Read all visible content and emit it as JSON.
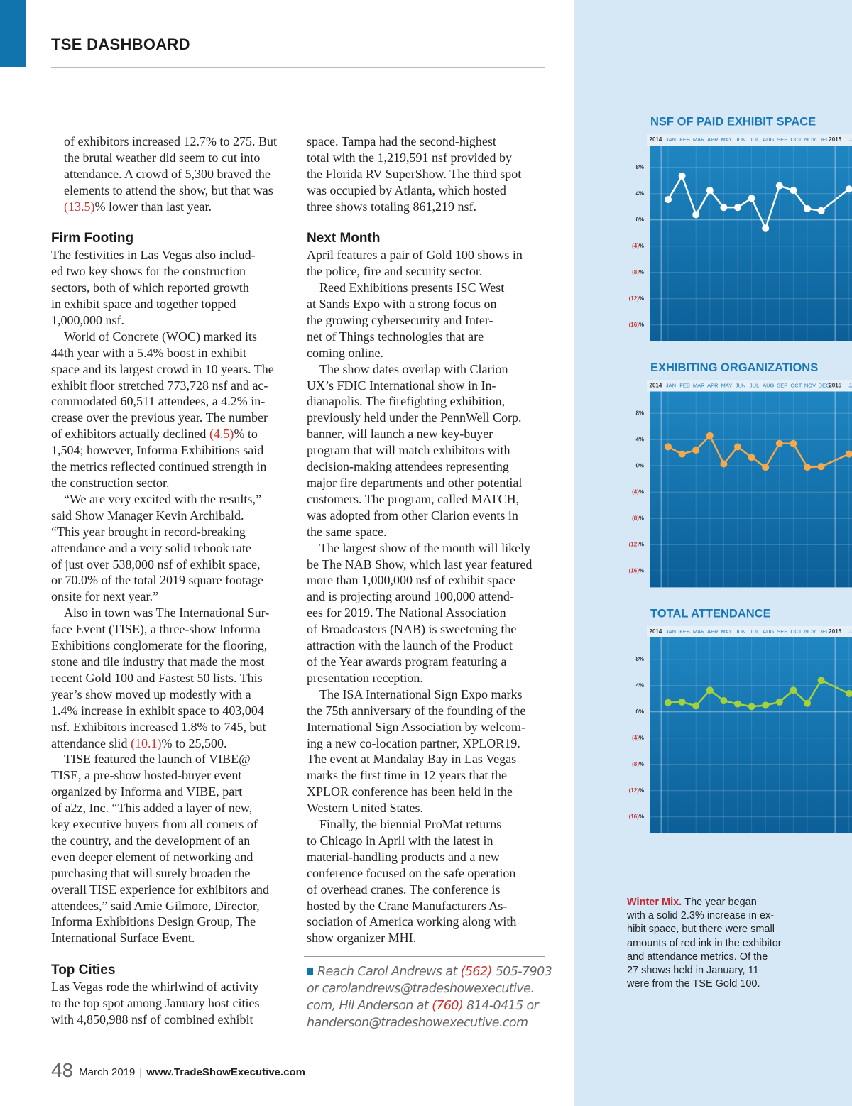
{
  "header": {
    "title": "TSE DASHBOARD"
  },
  "article": {
    "left": [
      {
        "paragraphs": [
          [
            "of exhibitors increased 12.7% to 275. But",
            "the brutal weather did seem to cut into",
            "attendance. A crowd of 5,300 braved the",
            "elements to attend the show, but that was",
            "(13.5)% lower than last year."
          ]
        ]
      },
      {
        "heading": "Firm Footing",
        "paragraphs": [
          [
            "The festivities in Las Vegas also includ-",
            "ed two key shows for the construction",
            "sectors, both of which reported growth",
            "in exhibit space and together topped",
            "1,000,000 nsf."
          ],
          [
            "World of Concrete (WOC) marked its",
            "44th year with a 5.4% boost in exhibit",
            "space and its largest crowd in 10 years. The",
            "exhibit floor stretched 773,728 nsf and ac-",
            "commodated 60,511 attendees, a 4.2% in-",
            "crease over the previous year. The number",
            "of exhibitors actually declined (4.5)% to",
            "1,504; however, Informa Exhibitions said",
            "the metrics reflected continued strength in",
            "the construction sector."
          ],
          [
            "“We are very excited with the results,”",
            "said Show Manager Kevin Archibald.",
            "“This year brought in record-breaking",
            "attendance and a very solid rebook rate",
            "of just over 538,000 nsf of exhibit space,",
            "or 70.0% of the total 2019 square footage",
            "onsite for next year.”"
          ],
          [
            "Also in town was The International Sur-",
            "face Event (TISE), a three-show Informa",
            "Exhibitions conglomerate for the flooring,",
            "stone and tile industry that made the most",
            "recent Gold 100 and Fastest 50 lists. This",
            "year’s show moved up modestly with a",
            "1.4% increase in exhibit space to 403,004",
            "nsf. Exhibitors increased 1.8% to 745, but",
            "attendance slid (10.1)% to 25,500."
          ],
          [
            "TISE featured the launch of VIBE@",
            "TISE, a pre-show hosted-buyer event",
            "organized by Informa and VIBE, part",
            "of a2z, Inc. “This added a layer of new,",
            "key executive buyers from all corners of",
            "the country, and the development of an",
            "even deeper element of networking and",
            "purchasing that will surely broaden the",
            "overall TISE experience for exhibitors and",
            "attendees,” said Amie Gilmore, Director,",
            "Informa Exhibitions Design Group, The",
            "International Surface Event."
          ]
        ]
      },
      {
        "heading": "Top Cities",
        "paragraphs": [
          [
            "Las Vegas rode the whirlwind of activity",
            "to the top spot among January host cities",
            "with 4,850,988 nsf of combined exhibit"
          ]
        ]
      }
    ],
    "right": [
      {
        "paragraphs": [
          [
            "space. Tampa had the second-highest",
            "total with the 1,219,591 nsf provided by",
            "the Florida RV SuperShow. The third spot",
            "was occupied by Atlanta, which hosted",
            "three shows totaling 861,219 nsf."
          ]
        ]
      },
      {
        "heading": "Next Month",
        "paragraphs": [
          [
            "April features a pair of Gold 100 shows in",
            "the police, fire and security sector."
          ],
          [
            "Reed Exhibitions presents ISC West",
            "at Sands Expo with a strong focus on",
            "the growing cybersecurity and Inter-",
            "net of Things technologies that are",
            "coming online."
          ],
          [
            "The show dates overlap with Clarion",
            "UX’s FDIC International show in In-",
            "dianapolis. The firefighting exhibition,",
            "previously held under the PennWell Corp.",
            "banner, will launch a new key-buyer",
            "program that will match exhibitors with",
            "decision-making attendees representing",
            "major fire departments and other potential",
            "customers. The program, called MATCH,",
            "was adopted from other Clarion events in",
            "the same space."
          ],
          [
            "The largest show of the month will likely",
            "be The NAB Show, which last year featured",
            "more than 1,000,000 nsf of exhibit space",
            "and is projecting around 100,000 attend-",
            "ees for 2019. The National Association",
            "of Broadcasters (NAB) is sweetening the",
            "attraction with the launch of the Product",
            "of the Year awards program featuring a",
            "presentation reception."
          ],
          [
            "The ISA International Sign Expo marks",
            "the 75th anniversary of the founding of the",
            "International Sign Association by welcom-",
            "ing a new co-location partner, XPLOR19.",
            "The event at Mandalay Bay in Las Vegas",
            "marks the first time in 12 years that the",
            "XPLOR conference has been held in the",
            "Western United States."
          ],
          [
            "Finally, the biennial ProMat returns",
            "to Chicago in April with the latest in",
            "material-handling products and a new",
            "conference focused on the safe operation",
            "of overhead cranes. The conference is",
            "hosted by the Crane Manufacturers As-",
            "sociation of America working along with",
            "show organizer MHI."
          ]
        ]
      }
    ]
  },
  "contact": {
    "lines": [
      "Reach Carol Andrews at (562) 505-7903",
      "or carolandrews@tradeshowexecutive.",
      "com, Hil Anderson at (760) 814-0415 or",
      "handerson@tradeshowexecutive.com"
    ]
  },
  "caption": {
    "lead": "Winter Mix.",
    "lines": [
      "The year began",
      "with a solid 2.3% increase in ex-",
      "hibit space, but there were small",
      "amounts of red ink in the exhibitor",
      "and attendance metrics. Of the",
      "27 shows held in January, 11",
      "were from the TSE Gold 100."
    ]
  },
  "footer": {
    "page": "48",
    "date": "March 2019",
    "separator": "|",
    "url": "www.TradeShowExecutive.com"
  },
  "chart_data": [
    {
      "type": "line",
      "title": "NSF OF PAID EXHIBIT SPACE",
      "year_labels": [
        "2014",
        "2015"
      ],
      "categories": [
        "JAN",
        "FEB",
        "MAR",
        "APR",
        "MAY",
        "JUN",
        "JUL",
        "AUG",
        "SEP",
        "OCT",
        "NOV",
        "DEC",
        "JA"
      ],
      "values": [
        3.1,
        6.7,
        0.8,
        4.5,
        1.9,
        1.9,
        3.3,
        -1.3,
        5.2,
        4.5,
        1.7,
        1.4,
        4.7
      ],
      "color": "#ffffff",
      "ylim": [
        -18.5,
        11
      ],
      "yticks": [
        {
          "value": 8,
          "label": "8%"
        },
        {
          "value": 4,
          "label": "4%"
        },
        {
          "value": 0,
          "label": "0%"
        },
        {
          "value": -4,
          "label": "(4)%"
        },
        {
          "value": -8,
          "label": "(8)%"
        },
        {
          "value": -12,
          "label": "(12)%"
        },
        {
          "value": -16,
          "label": "(16)%"
        }
      ],
      "grid": true
    },
    {
      "type": "line",
      "title": "EXHIBITING ORGANIZATIONS",
      "year_labels": [
        "2014",
        "2015"
      ],
      "categories": [
        "JAN",
        "FEB",
        "MAR",
        "APR",
        "MAY",
        "JUN",
        "JUL",
        "AUG",
        "SEP",
        "OCT",
        "NOV",
        "DEC",
        "JA"
      ],
      "values": [
        2.9,
        1.8,
        2.4,
        4.6,
        0.3,
        2.9,
        1.3,
        -0.2,
        3.4,
        3.4,
        -0.2,
        -0.1,
        1.8
      ],
      "color": "#f5a94b",
      "ylim": [
        -18.5,
        11
      ],
      "yticks": [
        {
          "value": 8,
          "label": "8%"
        },
        {
          "value": 4,
          "label": "4%"
        },
        {
          "value": 0,
          "label": "0%"
        },
        {
          "value": -4,
          "label": "(4)%"
        },
        {
          "value": -8,
          "label": "(8)%"
        },
        {
          "value": -12,
          "label": "(12)%"
        },
        {
          "value": -16,
          "label": "(16)%"
        }
      ],
      "grid": true
    },
    {
      "type": "line",
      "title": "TOTAL ATTENDANCE",
      "year_labels": [
        "2014",
        "2015"
      ],
      "categories": [
        "JAN",
        "FEB",
        "MAR",
        "APR",
        "MAY",
        "JUN",
        "JUL",
        "AUG",
        "SEP",
        "OCT",
        "NOV",
        "DEC",
        "JA"
      ],
      "values": [
        1.4,
        1.5,
        0.9,
        3.3,
        1.7,
        1.2,
        0.8,
        1.0,
        1.5,
        3.3,
        1.3,
        4.8,
        2.8
      ],
      "color": "#a5d13b",
      "ylim": [
        -18.5,
        11
      ],
      "yticks": [
        {
          "value": 8,
          "label": "8%"
        },
        {
          "value": 4,
          "label": "4%"
        },
        {
          "value": 0,
          "label": "0%"
        },
        {
          "value": -4,
          "label": "(4)%"
        },
        {
          "value": -8,
          "label": "(8)%"
        },
        {
          "value": -12,
          "label": "(12)%"
        },
        {
          "value": -16,
          "label": "(16)%"
        }
      ],
      "grid": true
    }
  ]
}
